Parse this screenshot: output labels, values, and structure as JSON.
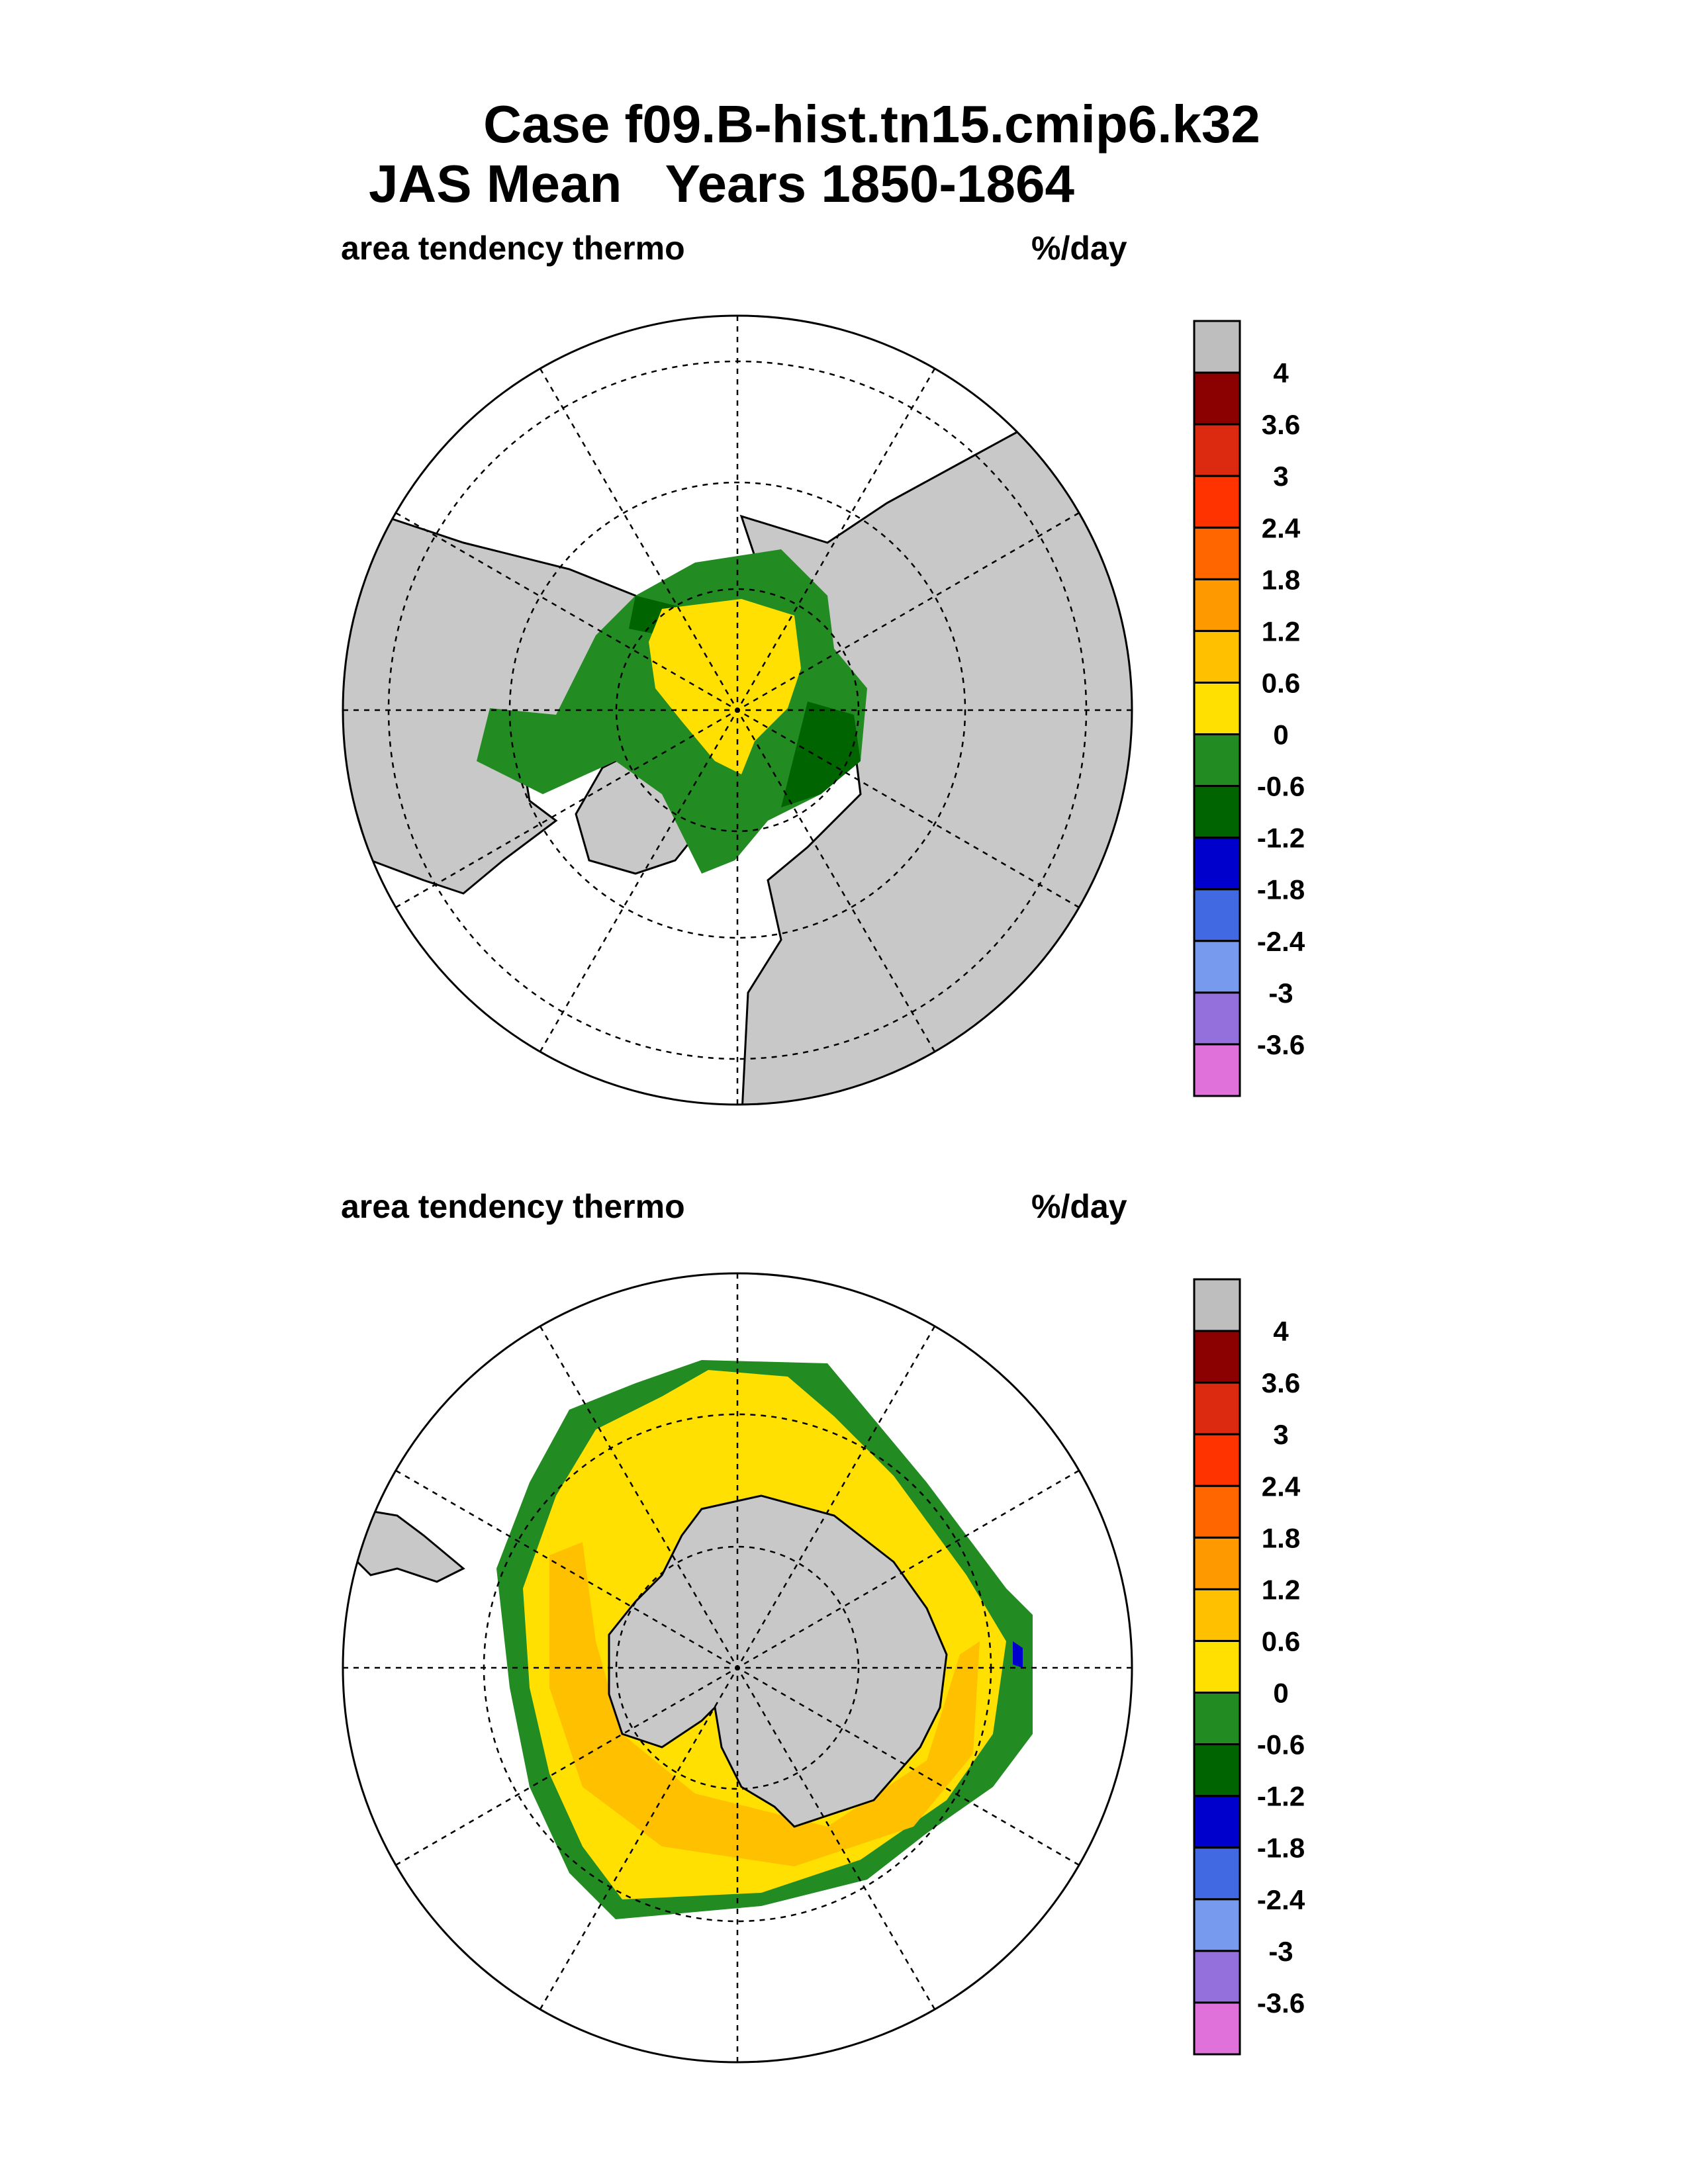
{
  "chart_data": {
    "type": "heatmap",
    "title_line1": "Case f09.B-hist.tn15.cmip6.k32",
    "title_line2": "JAS Mean   Years 1850-1864",
    "panels": [
      {
        "name": "northern-hemisphere",
        "variable": "area tendency thermo",
        "units": "%/day",
        "projection": "polar stereographic (north)"
      },
      {
        "name": "southern-hemisphere",
        "variable": "area tendency thermo",
        "units": "%/day",
        "projection": "polar stereographic (south)"
      }
    ],
    "colorbar": {
      "levels": [
        "4",
        "3.6",
        "3",
        "2.4",
        "1.8",
        "1.2",
        "0.6",
        "0",
        "-0.6",
        "-1.2",
        "-1.8",
        "-2.4",
        "-3",
        "-3.6"
      ],
      "colors": [
        "#bebebe",
        "#8b0000",
        "#dc2a10",
        "#ff3300",
        "#ff6600",
        "#ff9900",
        "#ffc000",
        "#ffe000",
        "#228b22",
        "#006400",
        "#0000cd",
        "#4169e1",
        "#7799ee",
        "#9370db",
        "#e070da"
      ]
    },
    "land_color": "#c8c8c8"
  }
}
